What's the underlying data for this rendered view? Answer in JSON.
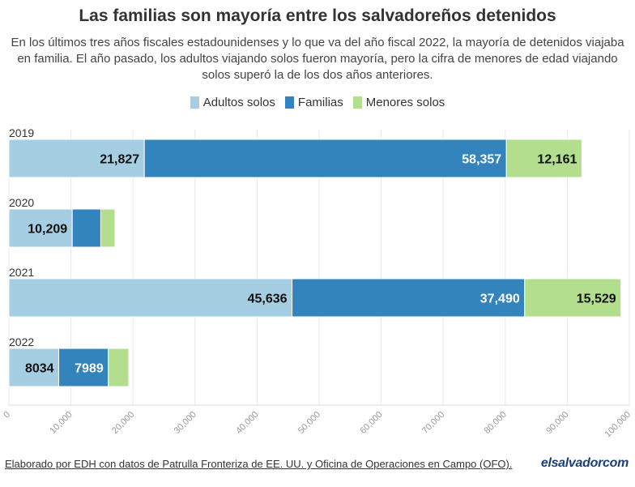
{
  "header": {
    "title": "Las familias son mayoría entre los salvadoreños detenidos",
    "subtitle": "En los últimos tres años fiscales estadounidenses y lo que va del año fiscal 2022, la mayoría de detenidos viajaba en familia. El año pasado, los adultos viajando solos fueron mayoría, pero la cifra de menores de edad viajando solos superó la de los dos años anteriores."
  },
  "legend": [
    {
      "label": "Adultos solos",
      "color": "#a6cee3"
    },
    {
      "label": "Familias",
      "color": "#3384bd"
    },
    {
      "label": "Menores solos",
      "color": "#b3de8e"
    }
  ],
  "chart_data": {
    "type": "bar",
    "orientation": "horizontal",
    "stacked": true,
    "categories": [
      "2019",
      "2020",
      "2021",
      "2022"
    ],
    "series": [
      {
        "name": "Adultos solos",
        "color": "#a6cee3",
        "values": [
          21827,
          10209,
          45636,
          8034
        ],
        "labels": [
          "21,827",
          "10,209",
          "45,636",
          "8034"
        ]
      },
      {
        "name": "Familias",
        "color": "#3384bd",
        "values": [
          58357,
          4600,
          37490,
          7989
        ],
        "labels": [
          "58,357",
          "",
          "37,490",
          "7989"
        ]
      },
      {
        "name": "Menores solos",
        "color": "#b3de8e",
        "values": [
          12161,
          2300,
          15529,
          3300
        ],
        "labels": [
          "12,161",
          "",
          "15,529",
          ""
        ]
      }
    ],
    "xlim": [
      0,
      100000
    ],
    "xticks": [
      "0",
      "10,000",
      "20,000",
      "30,000",
      "40,000",
      "50,000",
      "60,000",
      "70,000",
      "80,000",
      "90,000",
      "100,000"
    ],
    "grid": true,
    "legend_position": "top-center"
  },
  "footer": {
    "source": "Elaborado por EDH con datos de Patrulla Fronteriza de EE. UU. y Oficina de Operaciones en Campo (OFO).",
    "logo": "elsalvadorcom"
  }
}
